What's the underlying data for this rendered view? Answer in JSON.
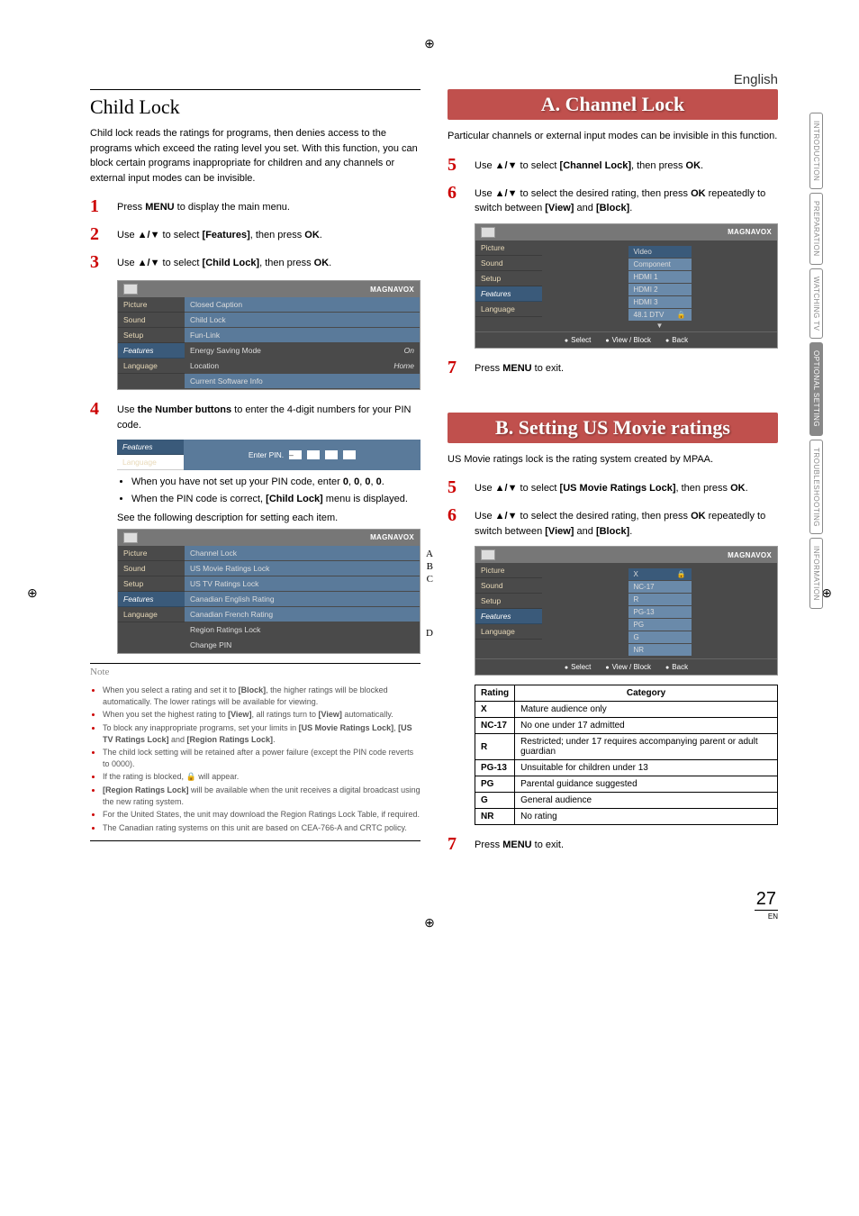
{
  "lang": "English",
  "page_number": "27",
  "page_lang": "EN",
  "brand": "MAGNAVOX",
  "side_tabs": [
    {
      "label": "INTRODUCTION",
      "active": false
    },
    {
      "label": "PREPARATION",
      "active": false
    },
    {
      "label": "WATCHING TV",
      "active": false
    },
    {
      "label": "OPTIONAL SETTING",
      "active": true
    },
    {
      "label": "TROUBLESHOOTING",
      "active": false
    },
    {
      "label": "INFORMATION",
      "active": false
    }
  ],
  "left": {
    "title": "Child Lock",
    "intro": "Child lock reads the ratings for programs, then denies access to the programs which exceed the rating level you set. With this function, you can block certain programs inappropriate for children and any channels or external input modes can be invisible.",
    "steps": {
      "s1": "Press <b>MENU</b> to display the main menu.",
      "s2": "Use <b>▲/▼</b> to select <b>[Features]</b>, then press <b>OK</b>.",
      "s3": "Use <b>▲/▼</b> to select <b>[Child Lock]</b>, then press <b>OK</b>.",
      "s4": "Use <b>the Number buttons</b> to enter the 4-digit numbers for your PIN code."
    },
    "menu1_left": [
      "Picture",
      "Sound",
      "Setup",
      "Features",
      "Language"
    ],
    "menu1_right": [
      {
        "l": "Closed Caption",
        "r": ""
      },
      {
        "l": "Child Lock",
        "r": ""
      },
      {
        "l": "Fun-Link",
        "r": ""
      },
      {
        "l": "Energy Saving Mode",
        "r": "On"
      },
      {
        "l": "Location",
        "r": "Home"
      },
      {
        "l": "Current Software Info",
        "r": ""
      }
    ],
    "pin_prompt": "Enter PIN.",
    "bullets": [
      "When you have not set up your PIN code, enter <b>0</b>, <b>0</b>, <b>0</b>, <b>0</b>.",
      "When the PIN code is correct, <b>[Child Lock]</b> menu is displayed."
    ],
    "see_following": "See the following description for setting each item.",
    "menu2_right": [
      "Channel Lock",
      "US Movie Ratings Lock",
      "US TV Ratings Lock",
      "Canadian English Rating",
      "Canadian French Rating",
      "Region Ratings Lock",
      "Change PIN"
    ],
    "callouts": {
      "A": "A",
      "B": "B",
      "C": "C",
      "D": "D"
    },
    "note_title": "Note",
    "notes": [
      "When you select a rating and set it to <b>[Block]</b>, the higher ratings will be blocked automatically. The lower ratings will be available for viewing.",
      "When you set the highest rating to <b>[View]</b>, all ratings turn to <b>[View]</b> automatically.",
      "To block any inappropriate programs, set your limits in <b>[US Movie Ratings Lock]</b>, <b>[US TV Ratings Lock]</b> and <b>[Region Ratings Lock]</b>.",
      "The child lock setting will be retained after a power failure (except the PIN code reverts to 0000).",
      "If the rating is blocked, 🔒 will appear.",
      "<b>[Region Ratings Lock]</b> will be available when the unit receives a digital broadcast using the new rating system.",
      "For the United States, the unit may download the Region Ratings Lock Table, if required.",
      "The Canadian rating systems on this unit are based on CEA-766-A and CRTC policy."
    ]
  },
  "right": {
    "sectionA": {
      "title": "A. Channel Lock",
      "intro": "Particular channels or external input modes can be invisible in this function.",
      "step5": "Use <b>▲/▼</b> to select <b>[Channel Lock]</b>, then press <b>OK</b>.",
      "step6": "Use <b>▲/▼</b> to select the desired rating, then press <b>OK</b> repeatedly to switch between <b>[View]</b> and <b>[Block]</b>.",
      "step7": "Press <b>MENU</b> to exit.",
      "inputs": [
        {
          "l": "Video",
          "lock": false
        },
        {
          "l": "Component",
          "lock": false
        },
        {
          "l": "HDMI 1",
          "lock": false
        },
        {
          "l": "HDMI 2",
          "lock": false
        },
        {
          "l": "HDMI 3",
          "lock": false
        },
        {
          "l": "48.1 DTV",
          "lock": true
        }
      ],
      "footer": [
        "Select",
        "View / Block",
        "Back"
      ]
    },
    "sectionB": {
      "title": "B. Setting US Movie ratings",
      "intro": "US Movie ratings lock is the rating system created by MPAA.",
      "step5": "Use <b>▲/▼</b> to select <b>[US Movie Ratings Lock]</b>, then press <b>OK</b>.",
      "step6": "Use <b>▲/▼</b> to select the desired rating, then press <b>OK</b> repeatedly to switch between <b>[View]</b> and <b>[Block]</b>.",
      "step7": "Press <b>MENU</b> to exit.",
      "ratings": [
        "X",
        "NC-17",
        "R",
        "PG-13",
        "PG",
        "G",
        "NR"
      ],
      "footer": [
        "Select",
        "View / Block",
        "Back"
      ]
    },
    "table": {
      "headers": [
        "Rating",
        "Category"
      ],
      "rows": [
        [
          "X",
          "Mature audience only"
        ],
        [
          "NC-17",
          "No one under 17 admitted"
        ],
        [
          "R",
          "Restricted; under 17 requires accompanying parent or adult guardian"
        ],
        [
          "PG-13",
          "Unsuitable for children under 13"
        ],
        [
          "PG",
          "Parental guidance suggested"
        ],
        [
          "G",
          "General audience"
        ],
        [
          "NR",
          "No rating"
        ]
      ]
    }
  },
  "menu_left": [
    "Picture",
    "Sound",
    "Setup",
    "Features",
    "Language"
  ]
}
